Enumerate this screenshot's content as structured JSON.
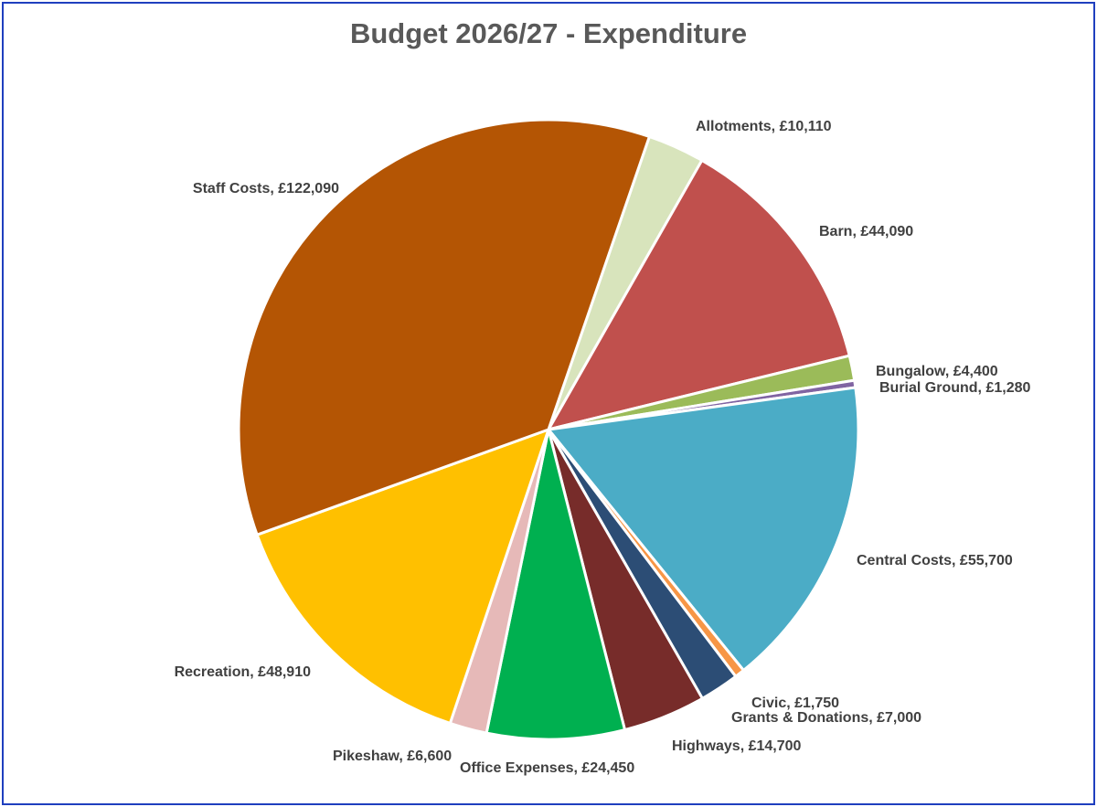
{
  "chart_data": {
    "type": "pie",
    "title": "Budget 2026/27 - Expenditure",
    "slices": [
      {
        "category": "Allotments",
        "value": 10110,
        "label": "Allotments, £10,110",
        "color": "#d8e4bc"
      },
      {
        "category": "Barn",
        "value": 44090,
        "label": "Barn, £44,090",
        "color": "#c0504d"
      },
      {
        "category": "Bungalow",
        "value": 4400,
        "label": "Bungalow, £4,400",
        "color": "#9bbb59"
      },
      {
        "category": "Burial Ground",
        "value": 1280,
        "label": "Burial Ground, £1,280",
        "color": "#8064a2"
      },
      {
        "category": "Central Costs",
        "value": 55700,
        "label": "Central Costs, £55,700",
        "color": "#4bacc6"
      },
      {
        "category": "Civic",
        "value": 1750,
        "label": "Civic, £1,750",
        "color": "#f79646"
      },
      {
        "category": "Grants & Donations",
        "value": 7000,
        "label": "Grants & Donations, £7,000",
        "color": "#2c4d75"
      },
      {
        "category": "Highways",
        "value": 14700,
        "label": "Highways, £14,700",
        "color": "#772c2a"
      },
      {
        "category": "Office Expenses",
        "value": 24450,
        "label": "Office Expenses, £24,450",
        "color": "#00b050"
      },
      {
        "category": "Pikeshaw",
        "value": 6600,
        "label": "Pikeshaw, £6,600",
        "color": "#e6b9b8"
      },
      {
        "category": "Recreation",
        "value": 48910,
        "label": "Recreation, £48,910",
        "color": "#ffc000"
      },
      {
        "category": "Staff Costs",
        "value": 122090,
        "label": "Staff Costs, £122,090",
        "color": "#b45504"
      }
    ],
    "start_angle_deg": 19,
    "direction": "clockwise",
    "legend": "none",
    "data_labels": "category-and-value",
    "border_color": "#1f3fbf"
  }
}
